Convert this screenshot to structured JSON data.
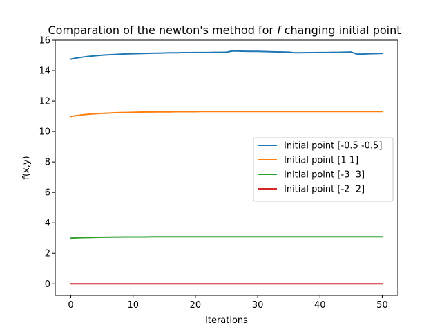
{
  "chart_data": {
    "type": "line",
    "title": "Comparation of the newton's method for f changing initial point",
    "title_parts": {
      "before": "Comparation of the newton's method for ",
      "italic": "f",
      "after": " changing initial point"
    },
    "xlabel": "Iterations",
    "ylabel": "f(x,y)",
    "xlim": [
      -2.5,
      52.5
    ],
    "ylim": [
      -0.76,
      16.0
    ],
    "xticks": [
      0,
      10,
      20,
      30,
      40,
      50
    ],
    "yticks": [
      0,
      2,
      4,
      6,
      8,
      10,
      12,
      14,
      16
    ],
    "grid": false,
    "legend_position": "center-right",
    "x": [
      0,
      1,
      2,
      3,
      4,
      5,
      6,
      7,
      8,
      9,
      10,
      11,
      12,
      13,
      14,
      15,
      16,
      17,
      18,
      19,
      20,
      21,
      22,
      23,
      24,
      25,
      26,
      27,
      28,
      29,
      30,
      31,
      32,
      33,
      34,
      35,
      36,
      37,
      38,
      39,
      40,
      41,
      42,
      43,
      44,
      45,
      46,
      47,
      48,
      49,
      50
    ],
    "series": [
      {
        "name": "Initial point [-0.5 -0.5]",
        "color": "#1f77b4",
        "values": [
          14.75,
          14.83,
          14.89,
          14.94,
          14.98,
          15.01,
          15.04,
          15.06,
          15.08,
          15.1,
          15.11,
          15.12,
          15.13,
          15.14,
          15.15,
          15.16,
          15.17,
          15.17,
          15.18,
          15.18,
          15.19,
          15.19,
          15.19,
          15.2,
          15.2,
          15.21,
          15.29,
          15.28,
          15.27,
          15.26,
          15.26,
          15.25,
          15.24,
          15.23,
          15.22,
          15.21,
          15.17,
          15.17,
          15.18,
          15.18,
          15.19,
          15.19,
          15.2,
          15.2,
          15.21,
          15.22,
          15.08,
          15.09,
          15.11,
          15.12,
          15.13
        ]
      },
      {
        "name": "Initial point [1 1]",
        "color": "#ff7f0e",
        "values": [
          10.99,
          11.05,
          11.1,
          11.14,
          11.17,
          11.19,
          11.21,
          11.23,
          11.24,
          11.25,
          11.26,
          11.27,
          11.28,
          11.28,
          11.29,
          11.29,
          11.29,
          11.3,
          11.3,
          11.3,
          11.3,
          11.31,
          11.31,
          11.31,
          11.31,
          11.31,
          11.31,
          11.31,
          11.31,
          11.31,
          11.31,
          11.31,
          11.31,
          11.31,
          11.31,
          11.31,
          11.31,
          11.31,
          11.31,
          11.31,
          11.31,
          11.31,
          11.31,
          11.31,
          11.31,
          11.31,
          11.31,
          11.31,
          11.31,
          11.31,
          11.31
        ]
      },
      {
        "name": "Initial point [-3  3]",
        "color": "#2ca02c",
        "values": [
          3.0,
          3.02,
          3.03,
          3.04,
          3.05,
          3.06,
          3.06,
          3.07,
          3.07,
          3.08,
          3.08,
          3.08,
          3.08,
          3.09,
          3.09,
          3.09,
          3.09,
          3.09,
          3.09,
          3.09,
          3.09,
          3.09,
          3.09,
          3.09,
          3.09,
          3.09,
          3.09,
          3.09,
          3.09,
          3.09,
          3.09,
          3.09,
          3.09,
          3.09,
          3.09,
          3.09,
          3.09,
          3.09,
          3.09,
          3.09,
          3.09,
          3.09,
          3.09,
          3.09,
          3.09,
          3.09,
          3.09,
          3.09,
          3.09,
          3.09,
          3.09
        ]
      },
      {
        "name": "Initial point [-2  2]",
        "color": "#d62728",
        "values": [
          0,
          0,
          0,
          0,
          0,
          0,
          0,
          0,
          0,
          0,
          0,
          0,
          0,
          0,
          0,
          0,
          0,
          0,
          0,
          0,
          0,
          0,
          0,
          0,
          0,
          0,
          0,
          0,
          0,
          0,
          0,
          0,
          0,
          0,
          0,
          0,
          0,
          0,
          0,
          0,
          0,
          0,
          0,
          0,
          0,
          0,
          0,
          0,
          0,
          0,
          0
        ]
      }
    ]
  }
}
